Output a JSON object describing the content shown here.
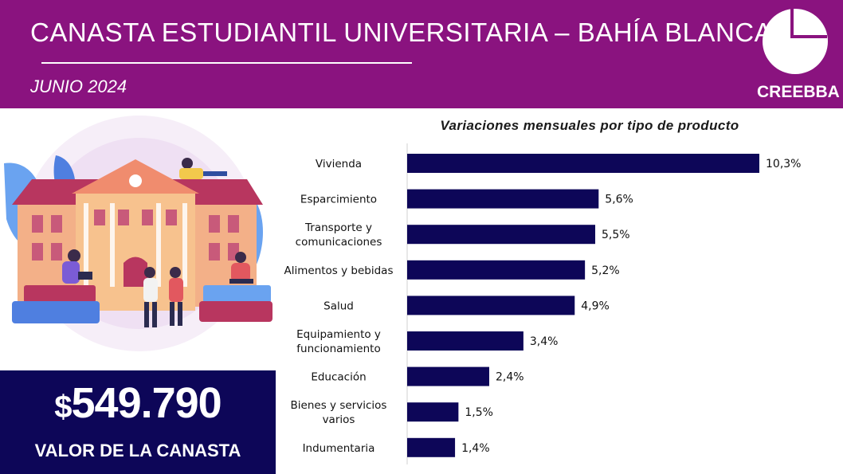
{
  "header": {
    "title": "CANASTA ESTUDIANTIL UNIVERSITARIA – BAHÍA BLANCA",
    "subtitle": "JUNIO 2024",
    "logo_text": "CREEBBA"
  },
  "summary": {
    "currency": "$",
    "amount": "549.790",
    "label": "VALOR DE LA CANASTA"
  },
  "colors": {
    "header_bg": "#8a137f",
    "bar": "#0d0658",
    "value_box": "#0d0658"
  },
  "chart_data": {
    "type": "bar",
    "orientation": "horizontal",
    "title": "Variaciones mensuales por tipo de producto",
    "categories": [
      [
        "Vivienda"
      ],
      [
        "Esparcimiento"
      ],
      [
        "Transporte y",
        "comunicaciones"
      ],
      [
        "Alimentos y bebidas"
      ],
      [
        "Salud"
      ],
      [
        "Equipamiento y",
        "funcionamiento"
      ],
      [
        "Educación"
      ],
      [
        "Bienes y servicios",
        "varios"
      ],
      [
        "Indumentaria"
      ]
    ],
    "values": [
      10.3,
      5.6,
      5.5,
      5.2,
      4.9,
      3.4,
      2.4,
      1.5,
      1.4
    ],
    "data_labels": [
      "10,3%",
      "5,6%",
      "5,5%",
      "5,2%",
      "4,9%",
      "3,4%",
      "2,4%",
      "1,5%",
      "1,4%"
    ],
    "xlim": [
      0,
      10.3
    ],
    "grid": false,
    "legend": "none"
  }
}
